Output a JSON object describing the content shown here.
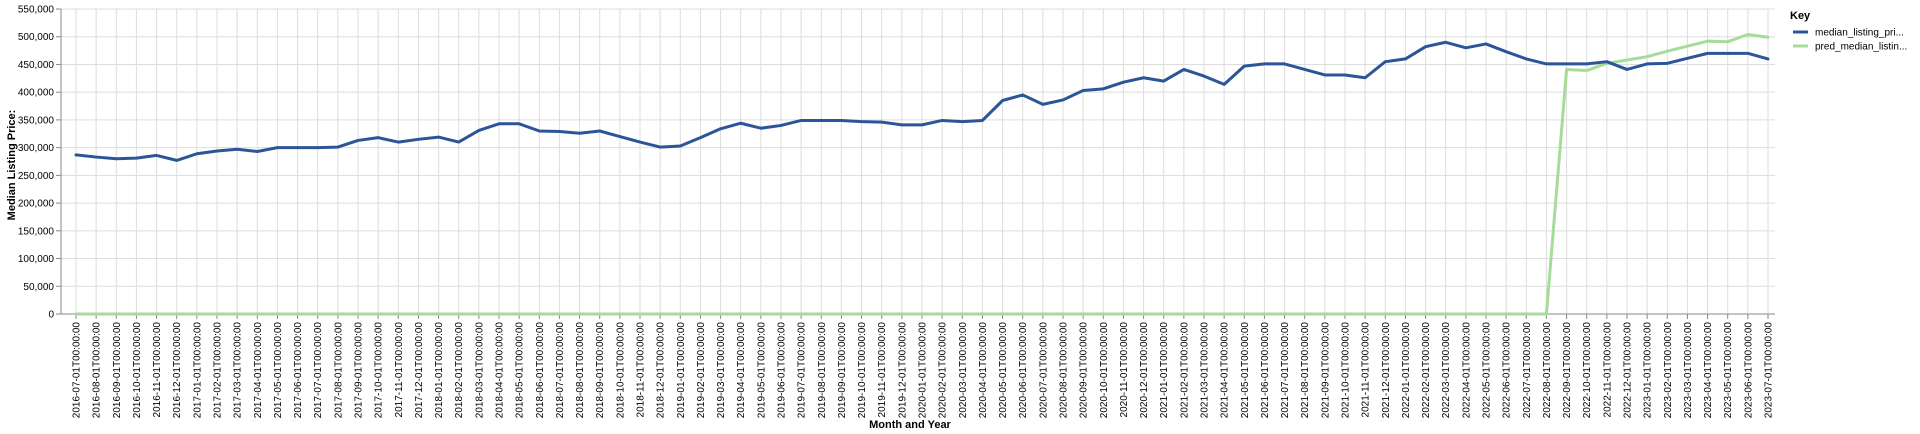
{
  "chart_data": {
    "type": "line",
    "xlabel": "Month and Year",
    "ylabel": "Median Listing Price:",
    "ylim": [
      0,
      550000
    ],
    "yticks": [
      0,
      50000,
      100000,
      150000,
      200000,
      250000,
      300000,
      350000,
      400000,
      450000,
      500000,
      550000
    ],
    "grid": true,
    "legend": {
      "title": "Key",
      "position": "right"
    },
    "x": [
      "2016-07-01T00:00:00",
      "2016-08-01T00:00:00",
      "2016-09-01T00:00:00",
      "2016-10-01T00:00:00",
      "2016-11-01T00:00:00",
      "2016-12-01T00:00:00",
      "2017-01-01T00:00:00",
      "2017-02-01T00:00:00",
      "2017-03-01T00:00:00",
      "2017-04-01T00:00:00",
      "2017-05-01T00:00:00",
      "2017-06-01T00:00:00",
      "2017-07-01T00:00:00",
      "2017-08-01T00:00:00",
      "2017-09-01T00:00:00",
      "2017-10-01T00:00:00",
      "2017-11-01T00:00:00",
      "2017-12-01T00:00:00",
      "2018-01-01T00:00:00",
      "2018-02-01T00:00:00",
      "2018-03-01T00:00:00",
      "2018-04-01T00:00:00",
      "2018-05-01T00:00:00",
      "2018-06-01T00:00:00",
      "2018-07-01T00:00:00",
      "2018-08-01T00:00:00",
      "2018-09-01T00:00:00",
      "2018-10-01T00:00:00",
      "2018-11-01T00:00:00",
      "2018-12-01T00:00:00",
      "2019-01-01T00:00:00",
      "2019-02-01T00:00:00",
      "2019-03-01T00:00:00",
      "2019-04-01T00:00:00",
      "2019-05-01T00:00:00",
      "2019-06-01T00:00:00",
      "2019-07-01T00:00:00",
      "2019-08-01T00:00:00",
      "2019-09-01T00:00:00",
      "2019-10-01T00:00:00",
      "2019-11-01T00:00:00",
      "2019-12-01T00:00:00",
      "2020-01-01T00:00:00",
      "2020-02-01T00:00:00",
      "2020-03-01T00:00:00",
      "2020-04-01T00:00:00",
      "2020-05-01T00:00:00",
      "2020-06-01T00:00:00",
      "2020-07-01T00:00:00",
      "2020-08-01T00:00:00",
      "2020-09-01T00:00:00",
      "2020-10-01T00:00:00",
      "2020-11-01T00:00:00",
      "2020-12-01T00:00:00",
      "2021-01-01T00:00:00",
      "2021-02-01T00:00:00",
      "2021-03-01T00:00:00",
      "2021-04-01T00:00:00",
      "2021-05-01T00:00:00",
      "2021-06-01T00:00:00",
      "2021-07-01T00:00:00",
      "2021-08-01T00:00:00",
      "2021-09-01T00:00:00",
      "2021-10-01T00:00:00",
      "2021-11-01T00:00:00",
      "2021-12-01T00:00:00",
      "2022-01-01T00:00:00",
      "2022-02-01T00:00:00",
      "2022-03-01T00:00:00",
      "2022-04-01T00:00:00",
      "2022-05-01T00:00:00",
      "2022-06-01T00:00:00",
      "2022-07-01T00:00:00",
      "2022-08-01T00:00:00",
      "2022-09-01T00:00:00",
      "2022-10-01T00:00:00",
      "2022-11-01T00:00:00",
      "2022-12-01T00:00:00",
      "2023-01-01T00:00:00",
      "2023-02-01T00:00:00",
      "2023-03-01T00:00:00",
      "2023-04-01T00:00:00",
      "2023-05-01T00:00:00",
      "2023-06-01T00:00:00",
      "2023-07-01T00:00:00"
    ],
    "series": [
      {
        "name": "median_listing_pri...",
        "color": "#2c5597",
        "values": [
          287000,
          283000,
          280000,
          281000,
          286000,
          277000,
          289000,
          294000,
          297000,
          293000,
          300000,
          300000,
          300000,
          301000,
          313000,
          318000,
          310000,
          315000,
          319000,
          310000,
          331000,
          343000,
          343000,
          330000,
          329000,
          326000,
          330000,
          320000,
          310000,
          301000,
          303000,
          318000,
          334000,
          344000,
          335000,
          340000,
          349000,
          349000,
          349000,
          347000,
          346000,
          341000,
          341000,
          349000,
          347000,
          349000,
          385000,
          395000,
          378000,
          386000,
          403000,
          406000,
          418000,
          426000,
          420000,
          441000,
          429000,
          414000,
          447000,
          451000,
          451000,
          441000,
          431000,
          431000,
          426000,
          455000,
          460000,
          482000,
          490000,
          480000,
          487000,
          473000,
          460000,
          451000,
          451000,
          451000,
          455000,
          441000,
          451000,
          452000,
          461000,
          470000,
          470000,
          470000,
          460000
        ]
      },
      {
        "name": "pred_median_listin...",
        "color": "#a6dc9a",
        "values": [
          0,
          0,
          0,
          0,
          0,
          0,
          0,
          0,
          0,
          0,
          0,
          0,
          0,
          0,
          0,
          0,
          0,
          0,
          0,
          0,
          0,
          0,
          0,
          0,
          0,
          0,
          0,
          0,
          0,
          0,
          0,
          0,
          0,
          0,
          0,
          0,
          0,
          0,
          0,
          0,
          0,
          0,
          0,
          0,
          0,
          0,
          0,
          0,
          0,
          0,
          0,
          0,
          0,
          0,
          0,
          0,
          0,
          0,
          0,
          0,
          0,
          0,
          0,
          0,
          0,
          0,
          0,
          0,
          0,
          0,
          0,
          0,
          0,
          0,
          441000,
          439000,
          452000,
          458000,
          464000,
          474000,
          483000,
          492000,
          491000,
          504000,
          499000
        ]
      }
    ]
  }
}
